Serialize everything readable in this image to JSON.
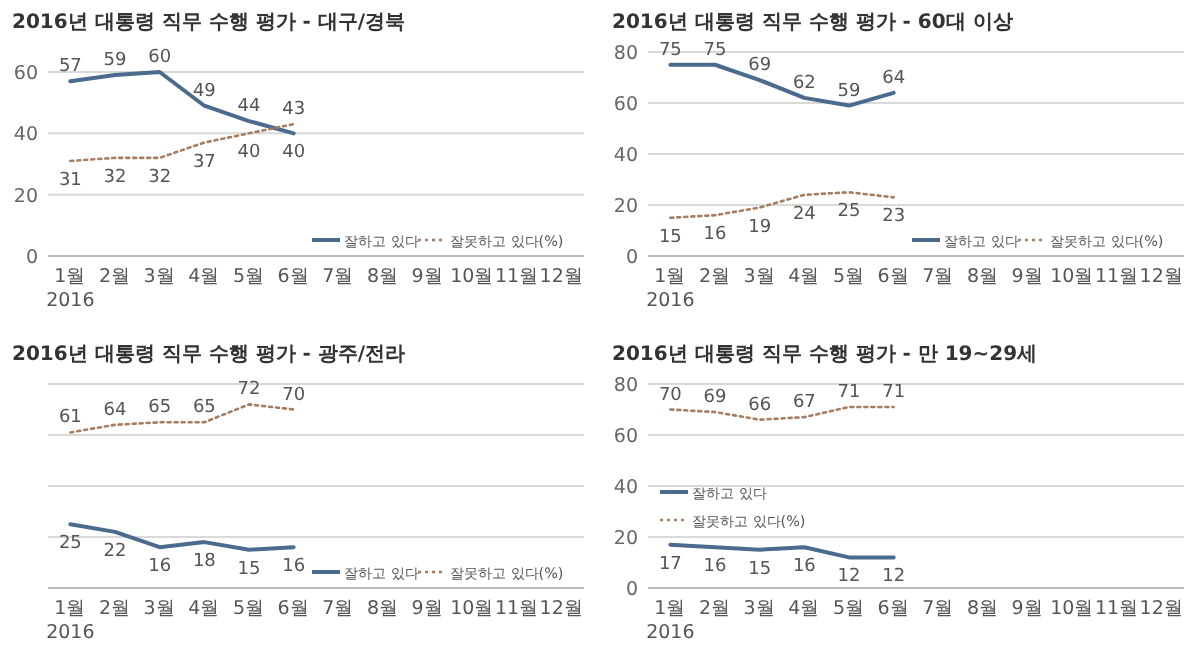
{
  "chart_data": [
    {
      "type": "line",
      "title": "2016년 대통령 직무 수행 평가 - 대구/경북",
      "categories": [
        "1월\n2016",
        "2월",
        "3월",
        "4월",
        "5월",
        "6월",
        "7월",
        "8월",
        "9월",
        "10월",
        "11월",
        "12월"
      ],
      "series": [
        {
          "name": "잘하고 있다",
          "color": "#4a6a8e",
          "line_style": "solid",
          "values": [
            57,
            59,
            60,
            49,
            44,
            40,
            null,
            null,
            null,
            null,
            null,
            null
          ]
        },
        {
          "name": "잘못하고 있다(%)",
          "color": "#a57d60",
          "line_style": "dotted",
          "values": [
            31,
            32,
            32,
            37,
            40,
            43,
            null,
            null,
            null,
            null,
            null,
            null
          ]
        }
      ],
      "ylim": [
        0,
        60
      ],
      "yticks": [
        0,
        20,
        40,
        60
      ],
      "grid": "y",
      "legend": "bottom right",
      "data_labels": true
    },
    {
      "type": "line",
      "title": "2016년 대통령 직무 수행 평가 - 60대 이상",
      "categories": [
        "1월\n2016",
        "2월",
        "3월",
        "4월",
        "5월",
        "6월",
        "7월",
        "8월",
        "9월",
        "10월",
        "11월",
        "12월"
      ],
      "series": [
        {
          "name": "잘하고 있다",
          "color": "#4a6a8e",
          "line_style": "solid",
          "values": [
            75,
            75,
            69,
            62,
            59,
            64,
            null,
            null,
            null,
            null,
            null,
            null
          ]
        },
        {
          "name": "잘못하고 있다(%)",
          "color": "#a57d60",
          "line_style": "dotted",
          "values": [
            15,
            16,
            19,
            24,
            25,
            23,
            null,
            null,
            null,
            null,
            null,
            null
          ]
        }
      ],
      "ylim": [
        0,
        80
      ],
      "yticks": [
        0,
        20,
        40,
        60,
        80
      ],
      "grid": "y",
      "legend": "bottom right",
      "data_labels": true
    },
    {
      "type": "line",
      "title": "2016년 대통령 직무 수행 평가 - 광주/전라",
      "categories": [
        "1월\n2016",
        "2월",
        "3월",
        "4월",
        "5월",
        "6월",
        "7월",
        "8월",
        "9월",
        "10월",
        "11월",
        "12월"
      ],
      "series": [
        {
          "name": "잘하고 있다",
          "color": "#4a6a8e",
          "line_style": "solid",
          "values": [
            25,
            22,
            16,
            18,
            15,
            16,
            null,
            null,
            null,
            null,
            null,
            null
          ]
        },
        {
          "name": "잘못하고 있다(%)",
          "color": "#a57d60",
          "line_style": "dotted",
          "values": [
            61,
            64,
            65,
            65,
            72,
            70,
            null,
            null,
            null,
            null,
            null,
            null
          ]
        }
      ],
      "ylim": [
        0,
        80
      ],
      "yticks": [
        0,
        20,
        40,
        60,
        80
      ],
      "tick_labels": "x",
      "grid": "y",
      "legend": "bottom right",
      "data_labels": true
    },
    {
      "type": "line",
      "title": "2016년 대통령 직무 수행 평가 - 만 19~29세",
      "categories": [
        "1월\n2016",
        "2월",
        "3월",
        "4월",
        "5월",
        "6월",
        "7월",
        "8월",
        "9월",
        "10월",
        "11월",
        "12월"
      ],
      "series": [
        {
          "name": "잘하고 있다",
          "color": "#4a6a8e",
          "line_style": "solid",
          "values": [
            17,
            16,
            15,
            16,
            12,
            12,
            null,
            null,
            null,
            null,
            null,
            null
          ]
        },
        {
          "name": "잘못하고 있다(%)",
          "color": "#a57d60",
          "line_style": "dotted",
          "values": [
            70,
            69,
            66,
            67,
            71,
            71,
            null,
            null,
            null,
            null,
            null,
            null
          ]
        }
      ],
      "ylim": [
        0,
        80
      ],
      "yticks": [
        0,
        20,
        40,
        60,
        80
      ],
      "grid": "y",
      "legend": "left",
      "data_labels": true
    }
  ]
}
